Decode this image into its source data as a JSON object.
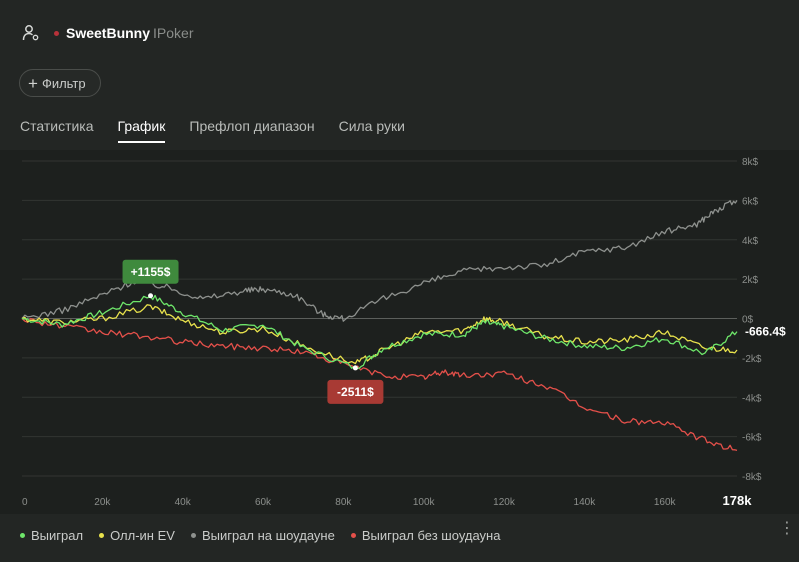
{
  "header": {
    "player": "SweetBunny",
    "room": "IPoker"
  },
  "filter": {
    "label": "Фильтр"
  },
  "tabs": [
    {
      "label": "Статистика",
      "active": false
    },
    {
      "label": "График",
      "active": true
    },
    {
      "label": "Префлоп диапазон",
      "active": false
    },
    {
      "label": "Сила руки",
      "active": false
    }
  ],
  "colors": {
    "won": "#6ee66a",
    "allin_ev": "#e8e24c",
    "showdown": "#8e918e",
    "non_showdown": "#e4504a",
    "peak_badge": "#3f8a3d",
    "trough_badge": "#a83a34"
  },
  "chart_data": {
    "type": "line",
    "x_max_label": "178k",
    "x_ticks": [
      "0",
      "20k",
      "40k",
      "60k",
      "80k",
      "100k",
      "120k",
      "140k",
      "160k"
    ],
    "x_tick_values": [
      0,
      20000,
      40000,
      60000,
      80000,
      100000,
      120000,
      140000,
      160000
    ],
    "y_ticks": [
      "8k$",
      "6k$",
      "4k$",
      "2k$",
      "0$",
      "-2k$",
      "-4k$",
      "-6k$",
      "-8k$"
    ],
    "y_tick_values": [
      8000,
      6000,
      4000,
      2000,
      0,
      -2000,
      -4000,
      -6000,
      -8000
    ],
    "xlim": [
      0,
      178000
    ],
    "ylim": [
      -8000,
      8000
    ],
    "grid": true,
    "legend_position": "bottom-left",
    "current_value_label": "-666.4$",
    "peak": {
      "label": "+1155$",
      "x": 32000,
      "y": 1155
    },
    "trough": {
      "label": "-2511$",
      "x": 83000,
      "y": -2511
    },
    "series": [
      {
        "name": "Выиграл",
        "color": "#6ee66a",
        "x": [
          0,
          10000,
          20000,
          32000,
          40000,
          50000,
          60000,
          70000,
          83000,
          90000,
          100000,
          110000,
          115000,
          120000,
          130000,
          140000,
          150000,
          160000,
          170000,
          178000
        ],
        "y": [
          0,
          -300,
          300,
          1155,
          300,
          -600,
          -300,
          -1500,
          -2511,
          -1500,
          -800,
          -800,
          -200,
          -400,
          -1000,
          -1400,
          -1500,
          -1000,
          -1800,
          -666
        ]
      },
      {
        "name": "Олл-ин EV",
        "color": "#e8e24c",
        "x": [
          0,
          10000,
          20000,
          32000,
          40000,
          50000,
          60000,
          70000,
          83000,
          90000,
          100000,
          110000,
          115000,
          120000,
          130000,
          140000,
          150000,
          160000,
          170000,
          178000
        ],
        "y": [
          0,
          -200,
          0,
          600,
          -100,
          -700,
          -500,
          -1400,
          -2300,
          -1600,
          -700,
          -600,
          0,
          -200,
          -900,
          -1200,
          -1100,
          -700,
          -1500,
          -1600
        ]
      },
      {
        "name": "Выиграл на шоудауне",
        "color": "#8e918e",
        "x": [
          0,
          10000,
          20000,
          28000,
          36000,
          45000,
          55000,
          60000,
          68000,
          75000,
          80000,
          90000,
          100000,
          110000,
          120000,
          130000,
          140000,
          150000,
          160000,
          168000,
          172000,
          178000
        ],
        "y": [
          0,
          400,
          1200,
          1900,
          1600,
          1000,
          1400,
          1500,
          1200,
          200,
          0,
          1000,
          1800,
          2400,
          2600,
          2700,
          3400,
          3600,
          4400,
          4800,
          5400,
          6000
        ]
      },
      {
        "name": "Выиграл без шоудауна",
        "color": "#e4504a",
        "x": [
          0,
          10000,
          20000,
          30000,
          40000,
          50000,
          60000,
          70000,
          80000,
          90000,
          100000,
          105000,
          110000,
          120000,
          130000,
          140000,
          150000,
          160000,
          170000,
          178000
        ],
        "y": [
          0,
          -400,
          -700,
          -900,
          -1200,
          -1400,
          -1500,
          -1700,
          -2300,
          -2900,
          -3000,
          -2700,
          -2900,
          -2800,
          -3400,
          -4500,
          -5200,
          -5300,
          -6200,
          -6700
        ]
      }
    ]
  }
}
